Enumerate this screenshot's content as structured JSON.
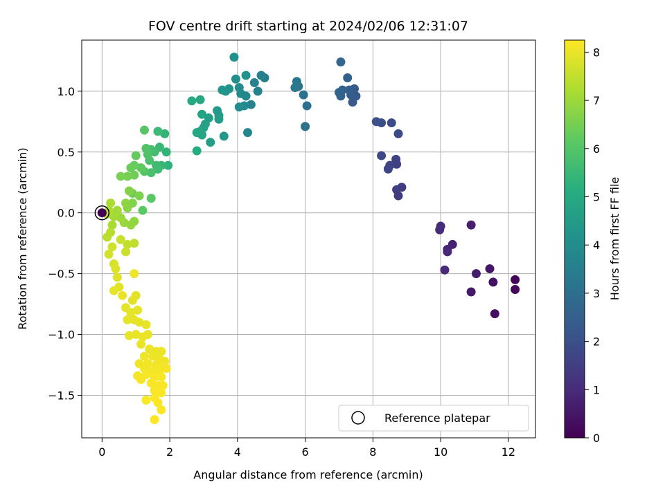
{
  "chart_data": {
    "type": "scatter",
    "title": "FOV centre drift starting at 2024/02/06 12:31:07",
    "xlabel": "Angular distance from reference (arcmin)",
    "ylabel": "Rotation from reference (arcmin)",
    "xlim": [
      -0.6,
      12.8
    ],
    "ylim": [
      -1.85,
      1.42
    ],
    "xticks": [
      0,
      2,
      4,
      6,
      8,
      10,
      12
    ],
    "yticks": [
      -1.5,
      -1.0,
      -0.5,
      0.0,
      0.5,
      1.0
    ],
    "xtick_labels": [
      "0",
      "2",
      "4",
      "6",
      "8",
      "10",
      "12"
    ],
    "ytick_labels": [
      "−1.5",
      "−1.0",
      "−0.5",
      "0.0",
      "0.5",
      "1.0"
    ],
    "grid": true,
    "colormap": "viridis",
    "colorbar": {
      "label": "Hours from first FF file",
      "range": [
        0,
        8.25
      ],
      "ticks": [
        0,
        1,
        2,
        3,
        4,
        5,
        6,
        7,
        8
      ],
      "tick_labels": [
        "0",
        "1",
        "2",
        "3",
        "4",
        "5",
        "6",
        "7",
        "8"
      ]
    },
    "legend": {
      "position": "lower-right",
      "entries": [
        {
          "label": "Reference platepar",
          "marker": "open-circle"
        }
      ]
    },
    "reference_point": {
      "x": 0,
      "y": 0
    },
    "points": [
      {
        "x": 12.2,
        "y": -0.55,
        "c": 0.1
      },
      {
        "x": 12.2,
        "y": -0.63,
        "c": 0.15
      },
      {
        "x": 11.6,
        "y": -0.83,
        "c": 0.3
      },
      {
        "x": 11.55,
        "y": -0.57,
        "c": 0.4
      },
      {
        "x": 11.45,
        "y": -0.46,
        "c": 0.5
      },
      {
        "x": 10.9,
        "y": -0.65,
        "c": 0.55
      },
      {
        "x": 11.05,
        "y": -0.5,
        "c": 0.65
      },
      {
        "x": 10.9,
        "y": -0.1,
        "c": 0.7
      },
      {
        "x": 10.35,
        "y": -0.26,
        "c": 0.8
      },
      {
        "x": 10.2,
        "y": -0.3,
        "c": 0.85
      },
      {
        "x": 10.2,
        "y": -0.32,
        "c": 0.9
      },
      {
        "x": 10.12,
        "y": -0.47,
        "c": 0.95
      },
      {
        "x": 10.0,
        "y": -0.11,
        "c": 1.0
      },
      {
        "x": 9.97,
        "y": -0.14,
        "c": 1.05
      },
      {
        "x": 8.85,
        "y": 0.21,
        "c": 1.4
      },
      {
        "x": 8.75,
        "y": 0.14,
        "c": 1.45
      },
      {
        "x": 8.7,
        "y": 0.19,
        "c": 1.5
      },
      {
        "x": 8.7,
        "y": 0.4,
        "c": 1.55
      },
      {
        "x": 8.68,
        "y": 0.44,
        "c": 1.6
      },
      {
        "x": 8.5,
        "y": 0.39,
        "c": 1.65
      },
      {
        "x": 8.45,
        "y": 0.36,
        "c": 1.7
      },
      {
        "x": 8.25,
        "y": 0.47,
        "c": 1.75
      },
      {
        "x": 8.75,
        "y": 0.65,
        "c": 1.85
      },
      {
        "x": 8.55,
        "y": 0.74,
        "c": 1.9
      },
      {
        "x": 8.25,
        "y": 0.74,
        "c": 1.95
      },
      {
        "x": 8.1,
        "y": 0.75,
        "c": 2.0
      },
      {
        "x": 7.5,
        "y": 0.96,
        "c": 2.25
      },
      {
        "x": 7.45,
        "y": 1.02,
        "c": 2.3
      },
      {
        "x": 7.4,
        "y": 0.91,
        "c": 2.35
      },
      {
        "x": 7.35,
        "y": 0.97,
        "c": 2.4
      },
      {
        "x": 7.3,
        "y": 1.01,
        "c": 2.45
      },
      {
        "x": 7.1,
        "y": 1.01,
        "c": 2.5
      },
      {
        "x": 7.25,
        "y": 1.11,
        "c": 2.55
      },
      {
        "x": 7.05,
        "y": 0.96,
        "c": 2.6
      },
      {
        "x": 7.0,
        "y": 0.99,
        "c": 2.65
      },
      {
        "x": 7.05,
        "y": 1.24,
        "c": 2.7
      },
      {
        "x": 6.05,
        "y": 0.88,
        "c": 3.0
      },
      {
        "x": 6.0,
        "y": 0.71,
        "c": 3.05
      },
      {
        "x": 5.95,
        "y": 0.97,
        "c": 3.1
      },
      {
        "x": 5.8,
        "y": 1.04,
        "c": 3.15
      },
      {
        "x": 5.75,
        "y": 1.08,
        "c": 3.2
      },
      {
        "x": 5.7,
        "y": 1.03,
        "c": 3.25
      },
      {
        "x": 4.8,
        "y": 1.11,
        "c": 3.5
      },
      {
        "x": 4.7,
        "y": 1.13,
        "c": 3.55
      },
      {
        "x": 4.6,
        "y": 1.0,
        "c": 3.6
      },
      {
        "x": 4.5,
        "y": 1.07,
        "c": 3.65
      },
      {
        "x": 4.4,
        "y": 0.89,
        "c": 3.7
      },
      {
        "x": 4.3,
        "y": 0.66,
        "c": 3.75
      },
      {
        "x": 4.25,
        "y": 0.96,
        "c": 3.8
      },
      {
        "x": 4.2,
        "y": 0.88,
        "c": 3.85
      },
      {
        "x": 4.1,
        "y": 0.98,
        "c": 3.9
      },
      {
        "x": 4.05,
        "y": 0.87,
        "c": 3.95
      },
      {
        "x": 4.05,
        "y": 1.03,
        "c": 4.0
      },
      {
        "x": 3.95,
        "y": 1.1,
        "c": 4.05
      },
      {
        "x": 3.9,
        "y": 1.28,
        "c": 4.1
      },
      {
        "x": 4.25,
        "y": 1.13,
        "c": 4.15
      },
      {
        "x": 3.75,
        "y": 1.02,
        "c": 4.2
      },
      {
        "x": 3.65,
        "y": 1.0,
        "c": 4.25
      },
      {
        "x": 3.55,
        "y": 1.01,
        "c": 4.3
      },
      {
        "x": 3.6,
        "y": 0.63,
        "c": 4.35
      },
      {
        "x": 3.4,
        "y": 0.84,
        "c": 4.4
      },
      {
        "x": 3.45,
        "y": 0.8,
        "c": 4.45
      },
      {
        "x": 3.45,
        "y": 0.77,
        "c": 4.5
      },
      {
        "x": 3.2,
        "y": 0.58,
        "c": 4.55
      },
      {
        "x": 3.15,
        "y": 0.78,
        "c": 4.6
      },
      {
        "x": 3.0,
        "y": 0.7,
        "c": 4.65
      },
      {
        "x": 3.05,
        "y": 0.73,
        "c": 4.7
      },
      {
        "x": 2.95,
        "y": 0.81,
        "c": 4.75
      },
      {
        "x": 2.95,
        "y": 0.64,
        "c": 4.8
      },
      {
        "x": 2.9,
        "y": 0.67,
        "c": 4.85
      },
      {
        "x": 2.8,
        "y": 0.66,
        "c": 4.9
      },
      {
        "x": 2.9,
        "y": 0.93,
        "c": 4.95
      },
      {
        "x": 2.65,
        "y": 0.92,
        "c": 5.0
      },
      {
        "x": 2.8,
        "y": 0.51,
        "c": 5.05
      },
      {
        "x": 1.95,
        "y": 0.39,
        "c": 5.3
      },
      {
        "x": 1.9,
        "y": 0.5,
        "c": 5.35
      },
      {
        "x": 1.85,
        "y": 0.65,
        "c": 5.4
      },
      {
        "x": 1.75,
        "y": 0.39,
        "c": 5.45
      },
      {
        "x": 1.7,
        "y": 0.54,
        "c": 5.5
      },
      {
        "x": 1.65,
        "y": 0.67,
        "c": 5.55
      },
      {
        "x": 1.65,
        "y": 0.36,
        "c": 5.6
      },
      {
        "x": 1.6,
        "y": 0.39,
        "c": 5.65
      },
      {
        "x": 1.55,
        "y": 0.5,
        "c": 5.7
      },
      {
        "x": 1.45,
        "y": 0.52,
        "c": 5.75
      },
      {
        "x": 1.45,
        "y": 0.33,
        "c": 5.8
      },
      {
        "x": 1.4,
        "y": 0.43,
        "c": 5.85
      },
      {
        "x": 1.35,
        "y": 0.48,
        "c": 5.9
      },
      {
        "x": 1.3,
        "y": 0.53,
        "c": 5.95
      },
      {
        "x": 1.25,
        "y": 0.34,
        "c": 6.0
      },
      {
        "x": 1.25,
        "y": 0.68,
        "c": 6.05
      },
      {
        "x": 1.45,
        "y": 0.12,
        "c": 6.1
      },
      {
        "x": 1.2,
        "y": 0.02,
        "c": 6.15
      },
      {
        "x": 1.15,
        "y": 0.37,
        "c": 6.2
      },
      {
        "x": 1.0,
        "y": 0.47,
        "c": 6.25
      },
      {
        "x": 0.95,
        "y": 0.39,
        "c": 6.3
      },
      {
        "x": 0.85,
        "y": 0.37,
        "c": 6.35
      },
      {
        "x": 0.95,
        "y": 0.31,
        "c": 6.4
      },
      {
        "x": 0.9,
        "y": 0.16,
        "c": 6.45
      },
      {
        "x": 0.75,
        "y": 0.3,
        "c": 6.5
      },
      {
        "x": 0.55,
        "y": 0.3,
        "c": 6.55
      },
      {
        "x": 1.1,
        "y": 0.14,
        "c": 6.6
      },
      {
        "x": 0.9,
        "y": 0.08,
        "c": 6.65
      },
      {
        "x": 0.8,
        "y": 0.18,
        "c": 6.7
      },
      {
        "x": 0.75,
        "y": 0.04,
        "c": 6.75
      },
      {
        "x": 0.7,
        "y": 0.08,
        "c": 6.8
      },
      {
        "x": 0.95,
        "y": -0.07,
        "c": 6.85
      },
      {
        "x": 0.85,
        "y": -0.1,
        "c": 6.9
      },
      {
        "x": 0.65,
        "y": -0.08,
        "c": 6.95
      },
      {
        "x": 0.55,
        "y": -0.04,
        "c": 7.0
      },
      {
        "x": 0.45,
        "y": 0.02,
        "c": 7.05
      },
      {
        "x": 0.35,
        "y": -0.03,
        "c": 7.1
      },
      {
        "x": 0.3,
        "y": -0.1,
        "c": 7.15
      },
      {
        "x": 0.25,
        "y": 0.08,
        "c": 7.2
      },
      {
        "x": 0.2,
        "y": 0.02,
        "c": 7.25
      },
      {
        "x": 0.15,
        "y": -0.01,
        "c": 7.3
      },
      {
        "x": 0.25,
        "y": -0.16,
        "c": 7.35
      },
      {
        "x": 0.15,
        "y": -0.2,
        "c": 7.4
      },
      {
        "x": 0.95,
        "y": -0.25,
        "c": 7.45
      },
      {
        "x": 0.75,
        "y": -0.26,
        "c": 7.5
      },
      {
        "x": 0.55,
        "y": -0.22,
        "c": 7.55
      },
      {
        "x": 0.7,
        "y": -0.32,
        "c": 7.6
      },
      {
        "x": 0.3,
        "y": -0.28,
        "c": 7.65
      },
      {
        "x": 0.2,
        "y": -0.34,
        "c": 7.7
      },
      {
        "x": 0.35,
        "y": -0.42,
        "c": 7.75
      },
      {
        "x": 0.4,
        "y": -0.46,
        "c": 7.8
      },
      {
        "x": 0.45,
        "y": -0.53,
        "c": 7.85
      },
      {
        "x": 0.5,
        "y": -0.61,
        "c": 7.9
      },
      {
        "x": 0.35,
        "y": -0.64,
        "c": 7.95
      },
      {
        "x": 0.6,
        "y": -0.68,
        "c": 8.0
      },
      {
        "x": 0.95,
        "y": -0.5,
        "c": 8.05
      }
    ],
    "late_points": [
      {
        "x": 0.9,
        "y": -0.72
      },
      {
        "x": 1.0,
        "y": -0.68
      },
      {
        "x": 0.7,
        "y": -0.78
      },
      {
        "x": 0.85,
        "y": -0.82
      },
      {
        "x": 1.05,
        "y": -0.8
      },
      {
        "x": 0.95,
        "y": -0.88
      },
      {
        "x": 0.75,
        "y": -0.88
      },
      {
        "x": 1.1,
        "y": -0.9
      },
      {
        "x": 1.3,
        "y": -0.92
      },
      {
        "x": 0.8,
        "y": -1.01
      },
      {
        "x": 1.0,
        "y": -1.0
      },
      {
        "x": 1.2,
        "y": -1.02
      },
      {
        "x": 1.35,
        "y": -1.0
      },
      {
        "x": 1.15,
        "y": -1.08
      },
      {
        "x": 1.4,
        "y": -1.12
      },
      {
        "x": 1.6,
        "y": -1.14
      },
      {
        "x": 1.75,
        "y": -1.14
      },
      {
        "x": 1.25,
        "y": -1.18
      },
      {
        "x": 1.5,
        "y": -1.18
      },
      {
        "x": 1.7,
        "y": -1.2
      },
      {
        "x": 1.85,
        "y": -1.22
      },
      {
        "x": 1.1,
        "y": -1.24
      },
      {
        "x": 1.35,
        "y": -1.24
      },
      {
        "x": 1.6,
        "y": -1.25
      },
      {
        "x": 1.8,
        "y": -1.26
      },
      {
        "x": 1.25,
        "y": -1.28
      },
      {
        "x": 1.5,
        "y": -1.3
      },
      {
        "x": 1.7,
        "y": -1.3
      },
      {
        "x": 1.9,
        "y": -1.28
      },
      {
        "x": 1.05,
        "y": -1.34
      },
      {
        "x": 1.3,
        "y": -1.33
      },
      {
        "x": 1.55,
        "y": -1.35
      },
      {
        "x": 1.75,
        "y": -1.35
      },
      {
        "x": 1.15,
        "y": -1.37
      },
      {
        "x": 1.45,
        "y": -1.4
      },
      {
        "x": 1.65,
        "y": -1.42
      },
      {
        "x": 1.8,
        "y": -1.42
      },
      {
        "x": 1.55,
        "y": -1.46
      },
      {
        "x": 1.75,
        "y": -1.48
      },
      {
        "x": 1.3,
        "y": -1.54
      },
      {
        "x": 1.55,
        "y": -1.52
      },
      {
        "x": 1.65,
        "y": -1.56
      },
      {
        "x": 1.75,
        "y": -1.62
      },
      {
        "x": 1.55,
        "y": -1.7
      }
    ]
  }
}
